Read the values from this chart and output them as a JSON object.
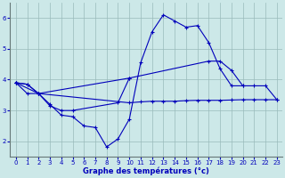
{
  "bg_color": "#cce8e8",
  "line_color": "#0000bb",
  "grid_color": "#99bbbb",
  "xlabel": "Graphe des températures (°c)",
  "ylim": [
    1.5,
    6.5
  ],
  "xlim": [
    -0.5,
    23.5
  ],
  "yticks": [
    2,
    3,
    4,
    5,
    6
  ],
  "xticks": [
    0,
    1,
    2,
    3,
    4,
    5,
    6,
    7,
    8,
    9,
    10,
    11,
    12,
    13,
    14,
    15,
    16,
    17,
    18,
    19,
    20,
    21,
    22,
    23
  ],
  "curve1_x": [
    0,
    1,
    2,
    3,
    4,
    5,
    6,
    7,
    8,
    9,
    10,
    11,
    12,
    13,
    14,
    15,
    16,
    17,
    18,
    19,
    20
  ],
  "curve1_y": [
    3.9,
    3.85,
    3.55,
    3.2,
    2.85,
    2.8,
    2.5,
    2.45,
    1.82,
    2.08,
    2.72,
    4.55,
    5.55,
    6.1,
    5.9,
    5.7,
    5.75,
    5.2,
    4.35,
    3.8,
    3.8
  ],
  "curve2_x": [
    0,
    1,
    2,
    10,
    11,
    12,
    13,
    14,
    15,
    16,
    17,
    18,
    19,
    20,
    21,
    22,
    23
  ],
  "curve2_y": [
    3.9,
    3.85,
    3.55,
    3.25,
    3.28,
    3.3,
    3.3,
    3.3,
    3.32,
    3.33,
    3.33,
    3.33,
    3.34,
    3.35,
    3.35,
    3.35,
    3.35
  ],
  "curve3_x": [
    0,
    2,
    10,
    17,
    18,
    19,
    20,
    21,
    22,
    23
  ],
  "curve3_y": [
    3.9,
    3.55,
    4.05,
    4.6,
    4.6,
    4.3,
    3.8,
    3.8,
    3.8,
    3.35
  ],
  "curve4_x": [
    0,
    1,
    2,
    3,
    4,
    5,
    9,
    10
  ],
  "curve4_y": [
    3.9,
    3.55,
    3.55,
    3.15,
    3.0,
    3.0,
    3.25,
    4.05
  ]
}
